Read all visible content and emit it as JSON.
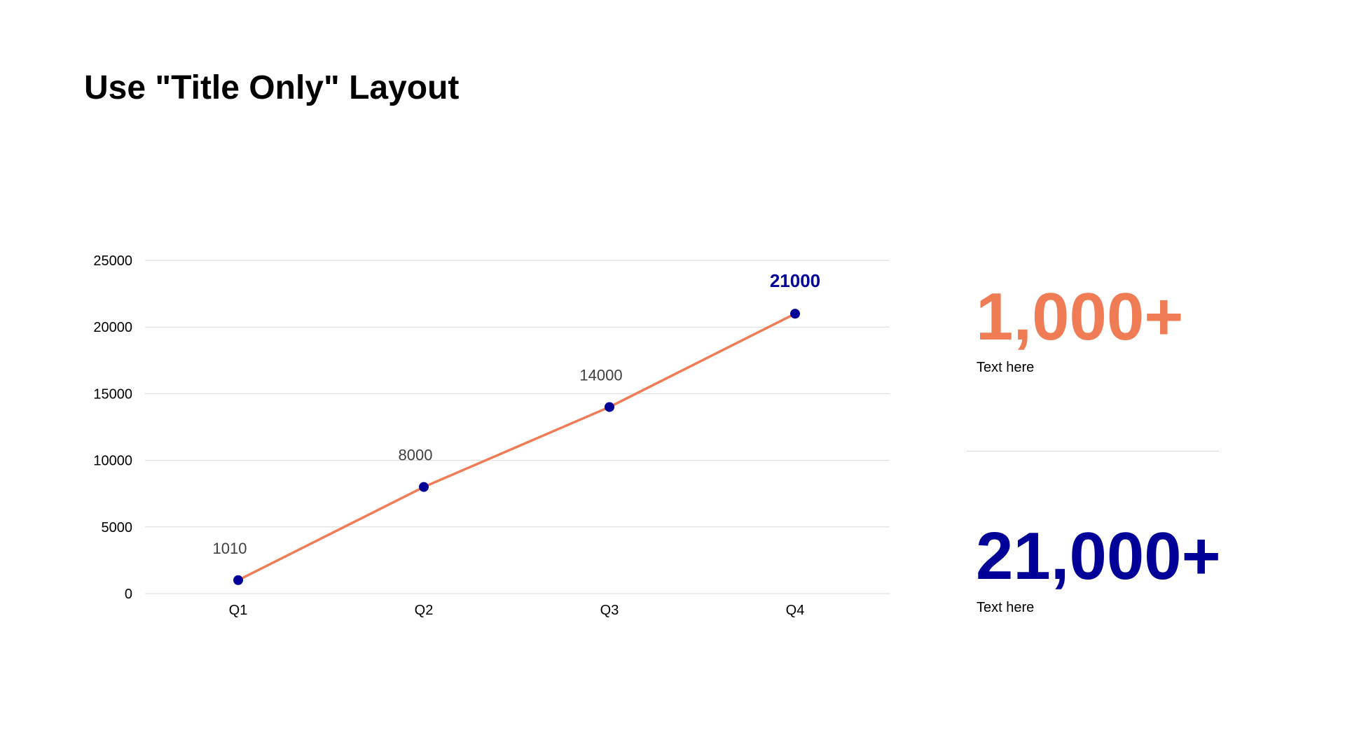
{
  "slide": {
    "title": "Use \"Title Only\" Layout"
  },
  "chart_data": {
    "type": "line",
    "title": "",
    "xlabel": "",
    "ylabel": "",
    "categories": [
      "Q1",
      "Q2",
      "Q3",
      "Q4"
    ],
    "series": [
      {
        "values": [
          1010,
          8000,
          14000,
          21000
        ]
      }
    ],
    "data_labels": [
      "1010",
      "8000",
      "14000",
      "21000"
    ],
    "highlighted_label_index": 3,
    "ylim": [
      0,
      25000
    ],
    "yticks": [
      0,
      5000,
      10000,
      15000,
      20000,
      25000
    ],
    "grid": true,
    "legend": "none"
  },
  "stats": [
    {
      "value": "1,000+",
      "caption": "Text here",
      "color": "#F07C56"
    },
    {
      "value": "21,000+",
      "caption": "Text here",
      "color": "#000099"
    }
  ],
  "colors": {
    "line": "#F07C56",
    "marker": "#000099",
    "highlight_label": "#000099",
    "label": "#404040",
    "grid": "#d9d9d9",
    "axis_text": "#000000"
  }
}
